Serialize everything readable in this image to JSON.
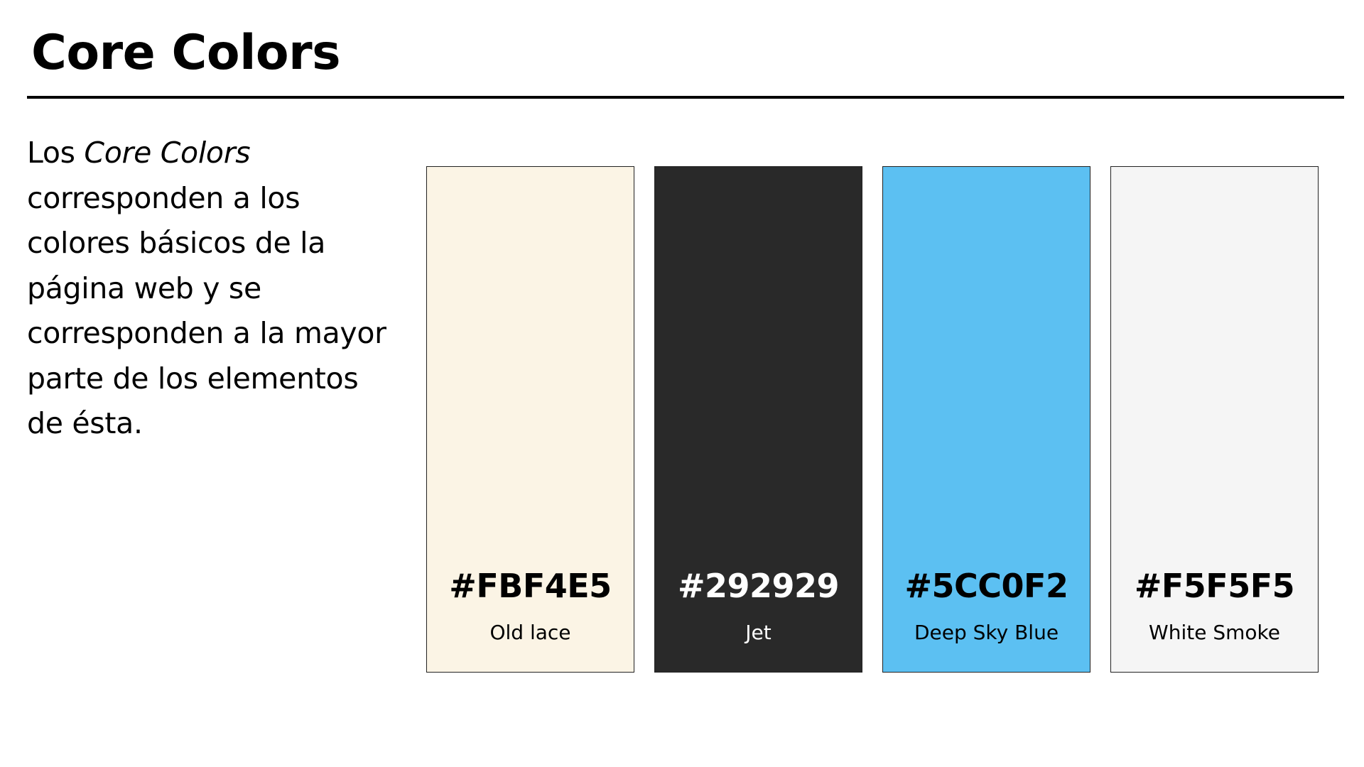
{
  "header": {
    "title": "Core Colors"
  },
  "description": {
    "prefix": "Los ",
    "emphasis": "Core Colors",
    "suffix": " corresponden a los colores básicos de la página web y se corresponden a la mayor parte de los elementos de ésta."
  },
  "palette": [
    {
      "hex": "#FBF4E5",
      "name": "Old lace",
      "color": "#FBF4E5",
      "text_color": "#000000"
    },
    {
      "hex": "#292929",
      "name": "Jet",
      "color": "#292929",
      "text_color": "#FFFFFF"
    },
    {
      "hex": "#5CC0F2",
      "name": "Deep Sky Blue",
      "color": "#5CC0F2",
      "text_color": "#000000"
    },
    {
      "hex": "#F5F5F5",
      "name": "White Smoke",
      "color": "#F5F5F5",
      "text_color": "#000000"
    }
  ]
}
